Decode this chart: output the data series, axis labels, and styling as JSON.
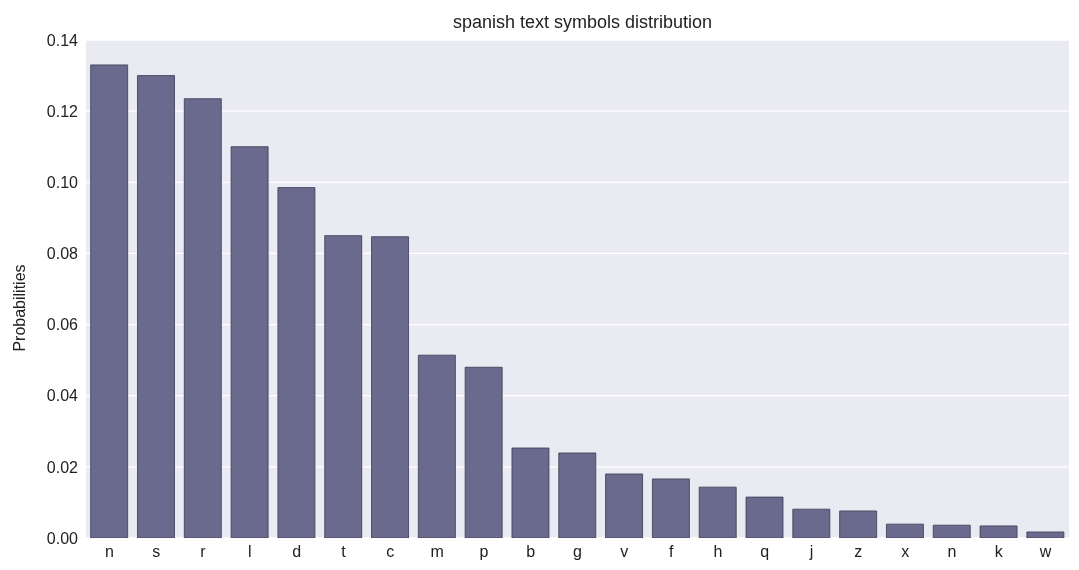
{
  "chart_data": {
    "type": "bar",
    "title": "spanish text symbols distribution",
    "ylabel": "Probabilities",
    "categories": [
      "n",
      "s",
      "r",
      "l",
      "d",
      "t",
      "c",
      "m",
      "p",
      "b",
      "g",
      "v",
      "f",
      "h",
      "q",
      "j",
      "z",
      "x",
      "n",
      "k",
      "w"
    ],
    "values": [
      0.133,
      0.13,
      0.1235,
      0.11,
      0.0985,
      0.085,
      0.0847,
      0.0514,
      0.048,
      0.0253,
      0.0239,
      0.018,
      0.0166,
      0.0143,
      0.0115,
      0.0081,
      0.0076,
      0.0039,
      0.0036,
      0.0034,
      0.0017
    ],
    "color": "#6a6a8f",
    "ylim": [
      0,
      0.14
    ],
    "yticks": [
      {
        "value": 0,
        "label": "0.00"
      },
      0.02,
      0.04,
      0.06,
      0.08,
      {
        "value": 0.1,
        "label": "0.10"
      },
      0.12,
      0.14
    ],
    "grid": "y"
  }
}
